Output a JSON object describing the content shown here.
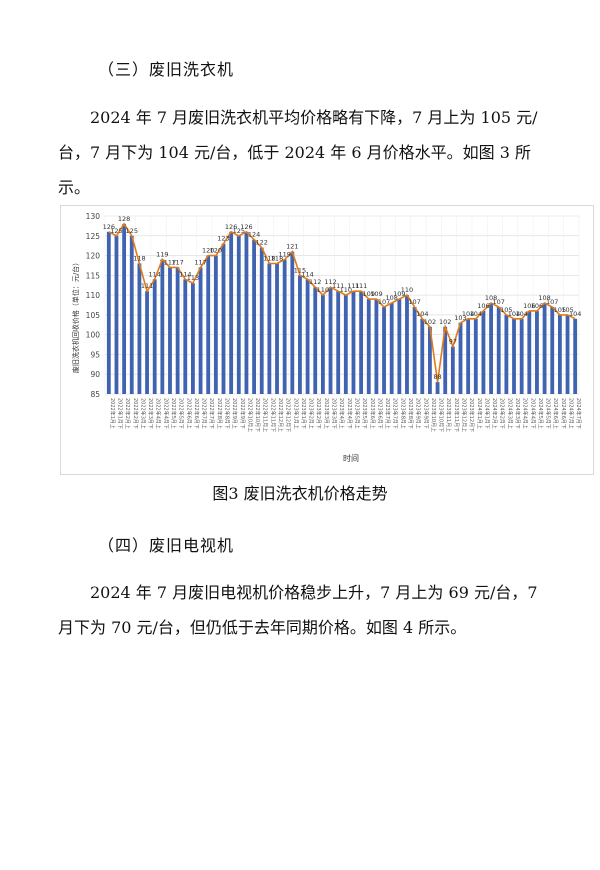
{
  "section3": {
    "heading": "（三）废旧洗衣机",
    "paragraph": "2024 年 7 月废旧洗衣机平均价格略有下降，7 月上为 105 元/台，7 月下为 104 元/台，低于 2024 年 6 月价格水平。如图 3 所示。"
  },
  "figure3": {
    "caption": "图3  废旧洗衣机价格走势"
  },
  "section4": {
    "heading": "（四）废旧电视机",
    "paragraph": "2024 年 7 月废旧电视机价格稳步上升，7 月上为 69 元/台，7 月下为 70 元/台，但仍低于去年同期价格。如图 4 所示。"
  },
  "chart_data": {
    "type": "bar",
    "title": "",
    "xlabel": "时间",
    "ylabel": "废旧洗衣机回收价格（单位：元/台）",
    "ylim": [
      85,
      130
    ],
    "yticks": [
      85,
      90,
      95,
      100,
      105,
      110,
      115,
      120,
      125,
      130
    ],
    "grid": true,
    "legend": "none",
    "bar_color": "#3f63b0",
    "line_color": "#e07b1a",
    "categories": [
      "2022年1月上",
      "2022年1月下",
      "2022年2月上",
      "2022年2月下",
      "2022年3月上",
      "2022年3月下",
      "2022年4月上",
      "2022年4月下",
      "2022年5月上",
      "2022年5月下",
      "2022年6月上",
      "2022年6月下",
      "2022年7月上",
      "2022年7月下",
      "2022年8月上",
      "2022年8月下",
      "2022年9月上",
      "2022年9月下",
      "2022年10月上",
      "2022年10月下",
      "2022年11月上",
      "2022年11月下",
      "2022年12月上",
      "2022年12月下",
      "2023年1月上",
      "2023年1月下",
      "2023年2月上",
      "2023年2月下",
      "2023年3月上",
      "2023年3月下",
      "2023年4月上",
      "2023年4月下",
      "2023年5月上",
      "2023年5月下",
      "2023年6月上",
      "2023年6月下",
      "2023年7月上",
      "2023年7月下",
      "2023年8月上",
      "2023年8月下",
      "2023年9月上",
      "2023年9月下",
      "2023年10月上",
      "2023年10月下",
      "2023年11月上",
      "2023年11月下",
      "2023年12月上",
      "2023年12月下",
      "2024年1月上",
      "2024年1月下",
      "2024年2月上",
      "2024年2月下",
      "2024年3月上",
      "2024年3月下",
      "2024年4月上",
      "2024年4月下",
      "2024年5月上",
      "2024年5月下",
      "2024年6月上",
      "2024年6月下",
      "2024年7月上",
      "2024年7月下"
    ],
    "values": [
      126,
      125,
      128,
      125,
      118,
      111,
      114,
      119,
      117,
      117,
      114,
      113,
      117,
      120,
      120,
      123,
      126,
      125,
      126,
      124,
      122,
      118,
      118,
      119,
      121,
      115,
      114,
      112,
      110,
      112,
      111,
      110,
      111,
      111,
      109,
      109,
      107,
      108,
      109,
      110,
      107,
      104,
      102,
      88,
      102,
      97,
      103,
      104,
      104,
      106,
      108,
      107,
      105,
      104,
      104,
      106,
      106,
      108,
      107,
      105,
      105,
      104
    ],
    "data_labels": [
      126,
      125,
      128,
      125,
      118,
      111,
      114,
      119,
      117,
      117,
      114,
      113,
      117,
      120,
      120,
      123,
      126,
      125,
      126,
      124,
      122,
      118,
      118,
      119,
      121,
      115,
      114,
      112,
      110,
      112,
      111,
      110,
      111,
      111,
      109,
      109,
      107,
      108,
      109,
      110,
      107,
      104,
      102,
      88,
      102,
      97,
      103,
      104,
      104,
      106,
      108,
      107,
      105,
      104,
      104,
      106,
      106,
      108,
      107,
      105,
      105,
      104
    ]
  }
}
